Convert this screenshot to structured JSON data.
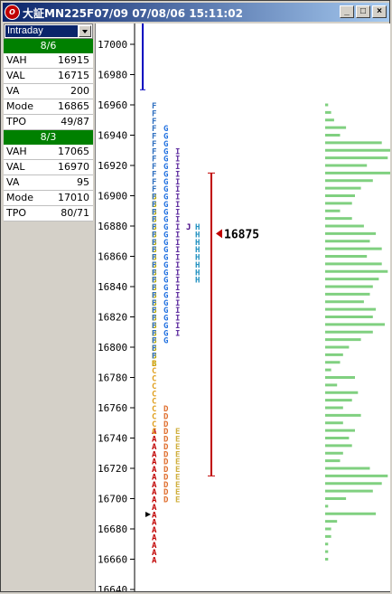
{
  "window": {
    "title": "大証MN225F07/09 07/08/06 15:11:02",
    "icon_name": "app-logo-icon",
    "buttons": [
      "_",
      "□",
      "×"
    ]
  },
  "sidebar": {
    "mode_select": "Intraday",
    "sessions": [
      {
        "date": "8/6",
        "rows": [
          {
            "label": "VAH",
            "value": "16915"
          },
          {
            "label": "VAL",
            "value": "16715"
          },
          {
            "label": "VA",
            "value": "200"
          },
          {
            "label": "Mode",
            "value": "16865"
          },
          {
            "label": "TPO",
            "value": "49/87"
          }
        ]
      },
      {
        "date": "8/3",
        "rows": [
          {
            "label": "VAH",
            "value": "17065"
          },
          {
            "label": "VAL",
            "value": "16970"
          },
          {
            "label": "VA",
            "value": "95"
          },
          {
            "label": "Mode",
            "value": "17010"
          },
          {
            "label": "TPO",
            "value": "80/71"
          }
        ]
      }
    ]
  },
  "chart_data": {
    "type": "market-profile",
    "y_ticks": [
      17000,
      16980,
      16960,
      16940,
      16920,
      16900,
      16880,
      16860,
      16840,
      16820,
      16800,
      16780,
      16760,
      16740,
      16720,
      16700,
      16680,
      16660,
      16640
    ],
    "ylim": [
      16640,
      17015
    ],
    "current_price_label": "16875",
    "current_price": 16875,
    "prev_session_range": [
      16970,
      17015
    ],
    "value_area_range": [
      16715,
      16915
    ],
    "tpo_columns": [
      {
        "letter": "A",
        "low": 16660,
        "high": 16745
      },
      {
        "letter": "B",
        "low": 16790,
        "high": 16900
      },
      {
        "letter": "C",
        "low": 16745,
        "high": 16790
      },
      {
        "letter": "D",
        "low": 16700,
        "high": 16760
      },
      {
        "letter": "E",
        "low": 16700,
        "high": 16745
      },
      {
        "letter": "F",
        "low": 16795,
        "high": 16960
      },
      {
        "letter": "G",
        "low": 16805,
        "high": 16945
      },
      {
        "letter": "H",
        "low": 16845,
        "high": 16880
      },
      {
        "letter": "I",
        "low": 16810,
        "high": 16930
      },
      {
        "letter": "J",
        "low": 16880,
        "high": 16880
      }
    ],
    "volume_profile": [
      {
        "price": 16960,
        "value": 1
      },
      {
        "price": 16955,
        "value": 2
      },
      {
        "price": 16950,
        "value": 3
      },
      {
        "price": 16945,
        "value": 7
      },
      {
        "price": 16940,
        "value": 5
      },
      {
        "price": 16935,
        "value": 19
      },
      {
        "price": 16930,
        "value": 22
      },
      {
        "price": 16925,
        "value": 21
      },
      {
        "price": 16920,
        "value": 14
      },
      {
        "price": 16915,
        "value": 22
      },
      {
        "price": 16910,
        "value": 16
      },
      {
        "price": 16905,
        "value": 12
      },
      {
        "price": 16900,
        "value": 10
      },
      {
        "price": 16895,
        "value": 9
      },
      {
        "price": 16890,
        "value": 5
      },
      {
        "price": 16885,
        "value": 9
      },
      {
        "price": 16880,
        "value": 13
      },
      {
        "price": 16875,
        "value": 17
      },
      {
        "price": 16870,
        "value": 15
      },
      {
        "price": 16865,
        "value": 19
      },
      {
        "price": 16860,
        "value": 14
      },
      {
        "price": 16855,
        "value": 19
      },
      {
        "price": 16850,
        "value": 21
      },
      {
        "price": 16845,
        "value": 18
      },
      {
        "price": 16840,
        "value": 16
      },
      {
        "price": 16835,
        "value": 15
      },
      {
        "price": 16830,
        "value": 13
      },
      {
        "price": 16825,
        "value": 17
      },
      {
        "price": 16820,
        "value": 16
      },
      {
        "price": 16815,
        "value": 20
      },
      {
        "price": 16810,
        "value": 16
      },
      {
        "price": 16805,
        "value": 12
      },
      {
        "price": 16800,
        "value": 8
      },
      {
        "price": 16795,
        "value": 6
      },
      {
        "price": 16790,
        "value": 5
      },
      {
        "price": 16785,
        "value": 2
      },
      {
        "price": 16780,
        "value": 10
      },
      {
        "price": 16775,
        "value": 4
      },
      {
        "price": 16770,
        "value": 11
      },
      {
        "price": 16765,
        "value": 9
      },
      {
        "price": 16760,
        "value": 6
      },
      {
        "price": 16755,
        "value": 12
      },
      {
        "price": 16750,
        "value": 6
      },
      {
        "price": 16745,
        "value": 10
      },
      {
        "price": 16740,
        "value": 8
      },
      {
        "price": 16735,
        "value": 9
      },
      {
        "price": 16730,
        "value": 6
      },
      {
        "price": 16725,
        "value": 5
      },
      {
        "price": 16720,
        "value": 15
      },
      {
        "price": 16715,
        "value": 21
      },
      {
        "price": 16710,
        "value": 19
      },
      {
        "price": 16705,
        "value": 16
      },
      {
        "price": 16700,
        "value": 7
      },
      {
        "price": 16695,
        "value": 1
      },
      {
        "price": 16690,
        "value": 17
      },
      {
        "price": 16685,
        "value": 4
      },
      {
        "price": 16680,
        "value": 2
      },
      {
        "price": 16675,
        "value": 2
      },
      {
        "price": 16670,
        "value": 1
      },
      {
        "price": 16665,
        "value": 1
      },
      {
        "price": 16660,
        "value": 1
      }
    ],
    "colors": {
      "A": "#c00000",
      "B": "#b5a600",
      "C": "#e0a020",
      "D": "#e07030",
      "E": "#d0b040",
      "F": "#3070c0",
      "G": "#2070e0",
      "H": "#2090c0",
      "I": "#6030a0",
      "J": "#400080",
      "volume": "#80d080",
      "price_marker": "#c00000",
      "prev_range": "#0000c0",
      "value_area": "#c00000"
    }
  }
}
